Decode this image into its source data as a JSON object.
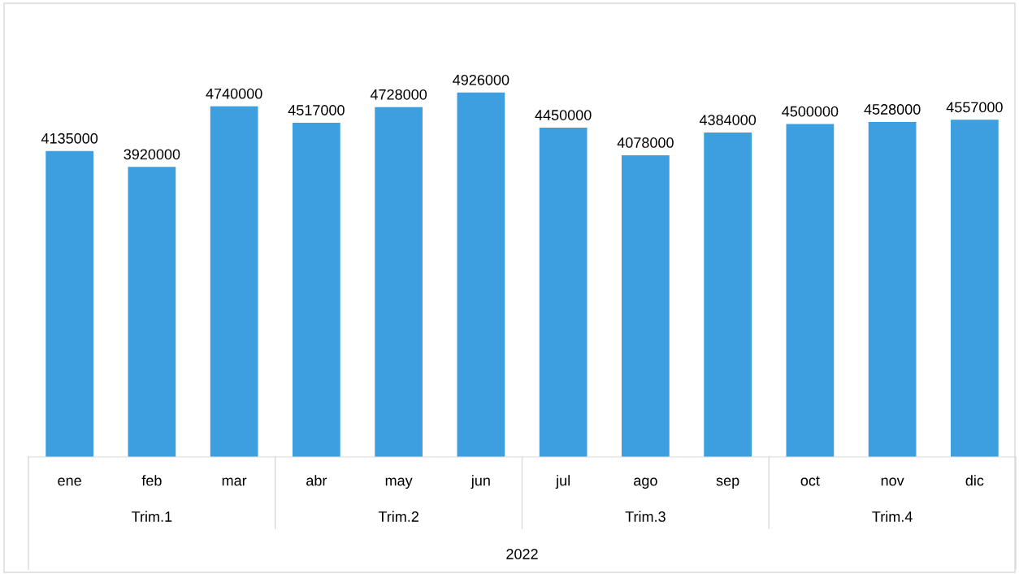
{
  "chart_data": {
    "type": "bar",
    "categories": [
      "ene",
      "feb",
      "mar",
      "abr",
      "may",
      "jun",
      "jul",
      "ago",
      "sep",
      "oct",
      "nov",
      "dic"
    ],
    "values": [
      4135000,
      3920000,
      4740000,
      4517000,
      4728000,
      4926000,
      4450000,
      4078000,
      4384000,
      4500000,
      4528000,
      4557000
    ],
    "color": "#3d9fe0",
    "data_labels": true,
    "grid": false,
    "annotations": [
      "Trim.1",
      "Trim.2",
      "Trim.3",
      "Trim.4",
      "2022"
    ]
  }
}
